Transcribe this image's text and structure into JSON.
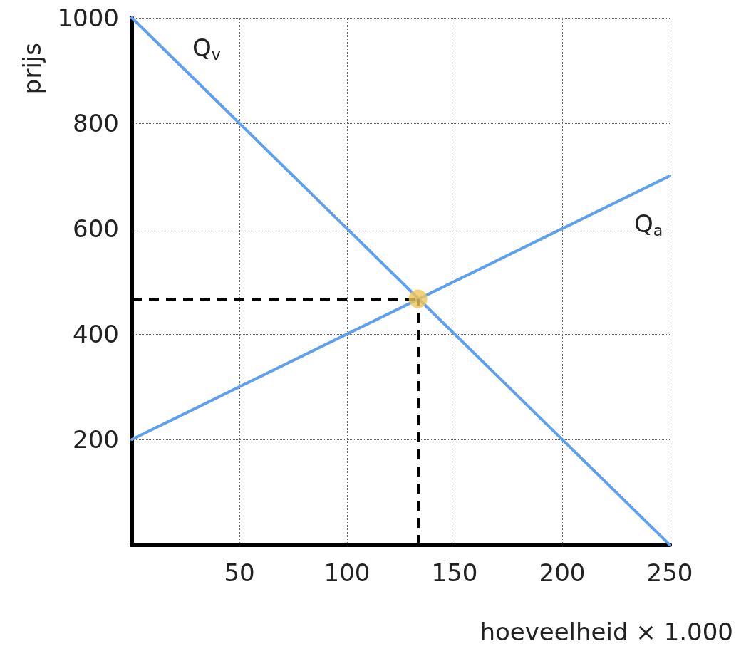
{
  "chart_data": {
    "type": "line",
    "xlabel": "hoeveelheid × 1.000",
    "ylabel": "prijs",
    "series": [
      {
        "name": null,
        "color": "#5ea0ef",
        "x": [
          0,
          250
        ],
        "values": [
          1000,
          0
        ]
      },
      {
        "name": null,
        "color": "#5ea0ef",
        "x": [
          0,
          250
        ],
        "values": [
          200,
          700
        ]
      },
      {
        "name": null,
        "type": "scatter",
        "color": "#f0c556",
        "x": [
          133
        ],
        "values": [
          467
        ]
      }
    ],
    "xlim": [
      0,
      250
    ],
    "xticks": [
      50,
      100,
      150,
      200,
      250
    ],
    "ylim": [
      0,
      1000
    ],
    "yticks": [
      200,
      400,
      600,
      800,
      1000
    ],
    "ref_lines": [
      {
        "axis": "x",
        "value": 133,
        "color": "#000000",
        "line_style": "dashed"
      },
      {
        "axis": "y",
        "value": 467,
        "color": "#000000",
        "line_style": "dashed"
      }
    ],
    "annotations": [
      "Q$_{v}$",
      "Q$_{a}$"
    ],
    "grid": true,
    "line_style": "solid"
  }
}
